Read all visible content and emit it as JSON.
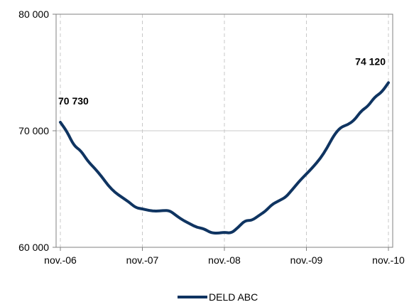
{
  "colors": {
    "series": "#0f3461",
    "gridline": "#c8c8c8",
    "plot_border": "#808080",
    "background": "#ffffff"
  },
  "chart_data": {
    "type": "line",
    "title": "",
    "xlabel": "",
    "ylabel": "",
    "ylim": [
      60000,
      80000
    ],
    "y_ticks": [
      60000,
      70000,
      80000
    ],
    "y_tick_labels": [
      "60 000",
      "70 000",
      "80 000"
    ],
    "x_ticks": [
      "2006-11",
      "2007-11",
      "2008-11",
      "2009-11",
      "2010-11"
    ],
    "x_tick_labels": [
      "nov.-06",
      "nov.-07",
      "nov.-08",
      "nov.-09",
      "nov.-10"
    ],
    "grid": {
      "horizontal": true,
      "vertical": "dashed"
    },
    "legend": {
      "position": "bottom"
    },
    "series": [
      {
        "name": "DELD ABC",
        "x": [
          "2006-11",
          "2006-12",
          "2007-01",
          "2007-02",
          "2007-03",
          "2007-04",
          "2007-05",
          "2007-06",
          "2007-07",
          "2007-08",
          "2007-09",
          "2007-10",
          "2007-11",
          "2007-12",
          "2008-01",
          "2008-02",
          "2008-03",
          "2008-04",
          "2008-05",
          "2008-06",
          "2008-07",
          "2008-08",
          "2008-09",
          "2008-10",
          "2008-11",
          "2008-12",
          "2009-01",
          "2009-02",
          "2009-03",
          "2009-04",
          "2009-05",
          "2009-06",
          "2009-07",
          "2009-08",
          "2009-09",
          "2009-10",
          "2009-11",
          "2009-12",
          "2010-01",
          "2010-02",
          "2010-03",
          "2010-04",
          "2010-05",
          "2010-06",
          "2010-07",
          "2010-08",
          "2010-09",
          "2010-10",
          "2010-11"
        ],
        "values": [
          70730,
          69900,
          68700,
          68300,
          67400,
          66800,
          66100,
          65300,
          64700,
          64300,
          63900,
          63400,
          63300,
          63150,
          63100,
          63150,
          63150,
          62700,
          62300,
          62000,
          61700,
          61600,
          61250,
          61200,
          61300,
          61200,
          61700,
          62300,
          62300,
          62700,
          63100,
          63700,
          64000,
          64300,
          65000,
          65700,
          66300,
          66900,
          67600,
          68500,
          69600,
          70300,
          70500,
          70900,
          71700,
          72100,
          72900,
          73300,
          74120
        ],
        "data_labels": [
          {
            "x": "2006-11",
            "text": "70 730"
          },
          {
            "x": "2010-11",
            "text": "74 120"
          }
        ]
      }
    ]
  }
}
